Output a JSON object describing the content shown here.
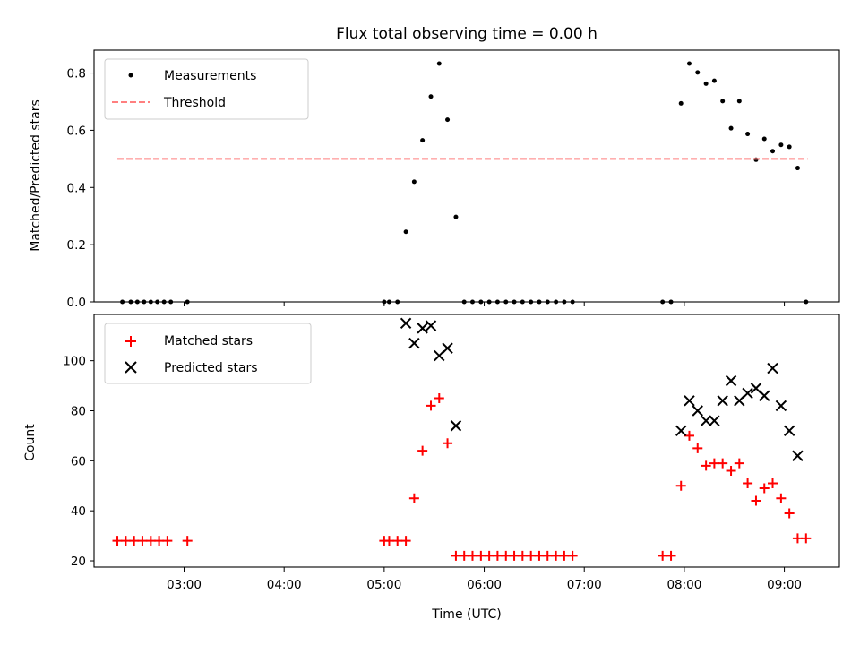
{
  "chart_data": [
    {
      "type": "scatter",
      "title": "Flux total observing time = 0.00 h",
      "xlabel": "",
      "ylabel": "Matched/Predicted stars",
      "xlim": [
        2.1,
        9.55
      ],
      "ylim": [
        0,
        0.88
      ],
      "yticks": [
        0.0,
        0.2,
        0.4,
        0.6,
        0.8
      ],
      "ytick_labels": [
        "0.0",
        "0.2",
        "0.4",
        "0.6",
        "0.8"
      ],
      "xticks": [
        3,
        4,
        5,
        6,
        7,
        8,
        9
      ],
      "legend": {
        "placement": "upper-left",
        "entries": [
          "Measurements",
          "Threshold"
        ]
      },
      "series": [
        {
          "name": "Measurements",
          "marker": "dot",
          "color": "#000000",
          "x": [
            2.383,
            2.467,
            2.533,
            2.6,
            2.667,
            2.733,
            2.8,
            2.867,
            3.033,
            5.0,
            5.05,
            5.133,
            5.217,
            5.3,
            5.383,
            5.467,
            5.55,
            5.633,
            5.717,
            5.8,
            5.883,
            5.967,
            6.05,
            6.133,
            6.217,
            6.3,
            6.383,
            6.467,
            6.55,
            6.633,
            6.717,
            6.8,
            6.883,
            7.783,
            7.867,
            7.967,
            8.05,
            8.133,
            8.217,
            8.3,
            8.383,
            8.467,
            8.55,
            8.633,
            8.717,
            8.8,
            8.883,
            8.967,
            9.05,
            9.133,
            9.217
          ],
          "y": [
            0,
            0,
            0,
            0,
            0,
            0,
            0,
            0,
            0,
            0,
            0,
            0,
            0.245,
            0.42,
            0.565,
            0.718,
            0.833,
            0.637,
            0.297,
            0,
            0,
            0,
            0,
            0,
            0,
            0,
            0,
            0,
            0,
            0,
            0,
            0,
            0,
            0,
            0,
            0.694,
            0.833,
            0.802,
            0.763,
            0.773,
            0.702,
            0.607,
            0.702,
            0.587,
            0.497,
            0.57,
            0.527,
            0.549,
            0.542,
            0.468,
            0
          ]
        },
        {
          "name": "Threshold",
          "type": "line",
          "style": "dashed",
          "color": "#ff7f7f",
          "x": [
            2.333,
            9.233
          ],
          "y": [
            0.5,
            0.5
          ]
        }
      ]
    },
    {
      "type": "scatter",
      "title": "",
      "xlabel": "Time (UTC)",
      "ylabel": "Count",
      "xlim": [
        2.1,
        9.55
      ],
      "ylim": [
        17.5,
        118.5
      ],
      "yticks": [
        20,
        40,
        60,
        80,
        100
      ],
      "ytick_labels": [
        "20",
        "40",
        "60",
        "80",
        "100"
      ],
      "xticks": [
        3,
        4,
        5,
        6,
        7,
        8,
        9
      ],
      "xtick_labels": [
        "03:00",
        "04:00",
        "05:00",
        "06:00",
        "07:00",
        "08:00",
        "09:00"
      ],
      "legend": {
        "placement": "upper-left",
        "entries": [
          "Matched stars",
          "Predicted stars"
        ]
      },
      "series": [
        {
          "name": "Matched stars",
          "marker": "plus",
          "color": "#ff0000",
          "x": [
            2.333,
            2.417,
            2.5,
            2.583,
            2.667,
            2.75,
            2.833,
            3.033,
            5.0,
            5.05,
            5.133,
            5.217,
            5.3,
            5.383,
            5.467,
            5.55,
            5.633,
            5.717,
            5.8,
            5.883,
            5.967,
            6.05,
            6.133,
            6.217,
            6.3,
            6.383,
            6.467,
            6.55,
            6.633,
            6.717,
            6.8,
            6.883,
            7.783,
            7.867,
            7.967,
            8.05,
            8.133,
            8.217,
            8.3,
            8.383,
            8.467,
            8.55,
            8.633,
            8.717,
            8.8,
            8.883,
            8.967,
            9.05,
            9.133,
            9.217
          ],
          "y": [
            28,
            28,
            28,
            28,
            28,
            28,
            28,
            28,
            28,
            28,
            28,
            28,
            45,
            64,
            82,
            85,
            67,
            22,
            22,
            22,
            22,
            22,
            22,
            22,
            22,
            22,
            22,
            22,
            22,
            22,
            22,
            22,
            22,
            22,
            50,
            70,
            65,
            58,
            59,
            59,
            56,
            59,
            51,
            44,
            49,
            51,
            45,
            39,
            29,
            29
          ]
        },
        {
          "name": "Predicted stars",
          "marker": "x",
          "color": "#000000",
          "x": [
            5.217,
            5.3,
            5.383,
            5.467,
            5.55,
            5.633,
            5.717,
            7.967,
            8.05,
            8.133,
            8.217,
            8.3,
            8.383,
            8.467,
            8.55,
            8.633,
            8.717,
            8.8,
            8.883,
            8.967,
            9.05,
            9.133
          ],
          "y": [
            115,
            107,
            113,
            114,
            102,
            105,
            74,
            72,
            84,
            80,
            76,
            76,
            84,
            92,
            84,
            87,
            89,
            86,
            97,
            82,
            72,
            62
          ]
        }
      ]
    }
  ]
}
